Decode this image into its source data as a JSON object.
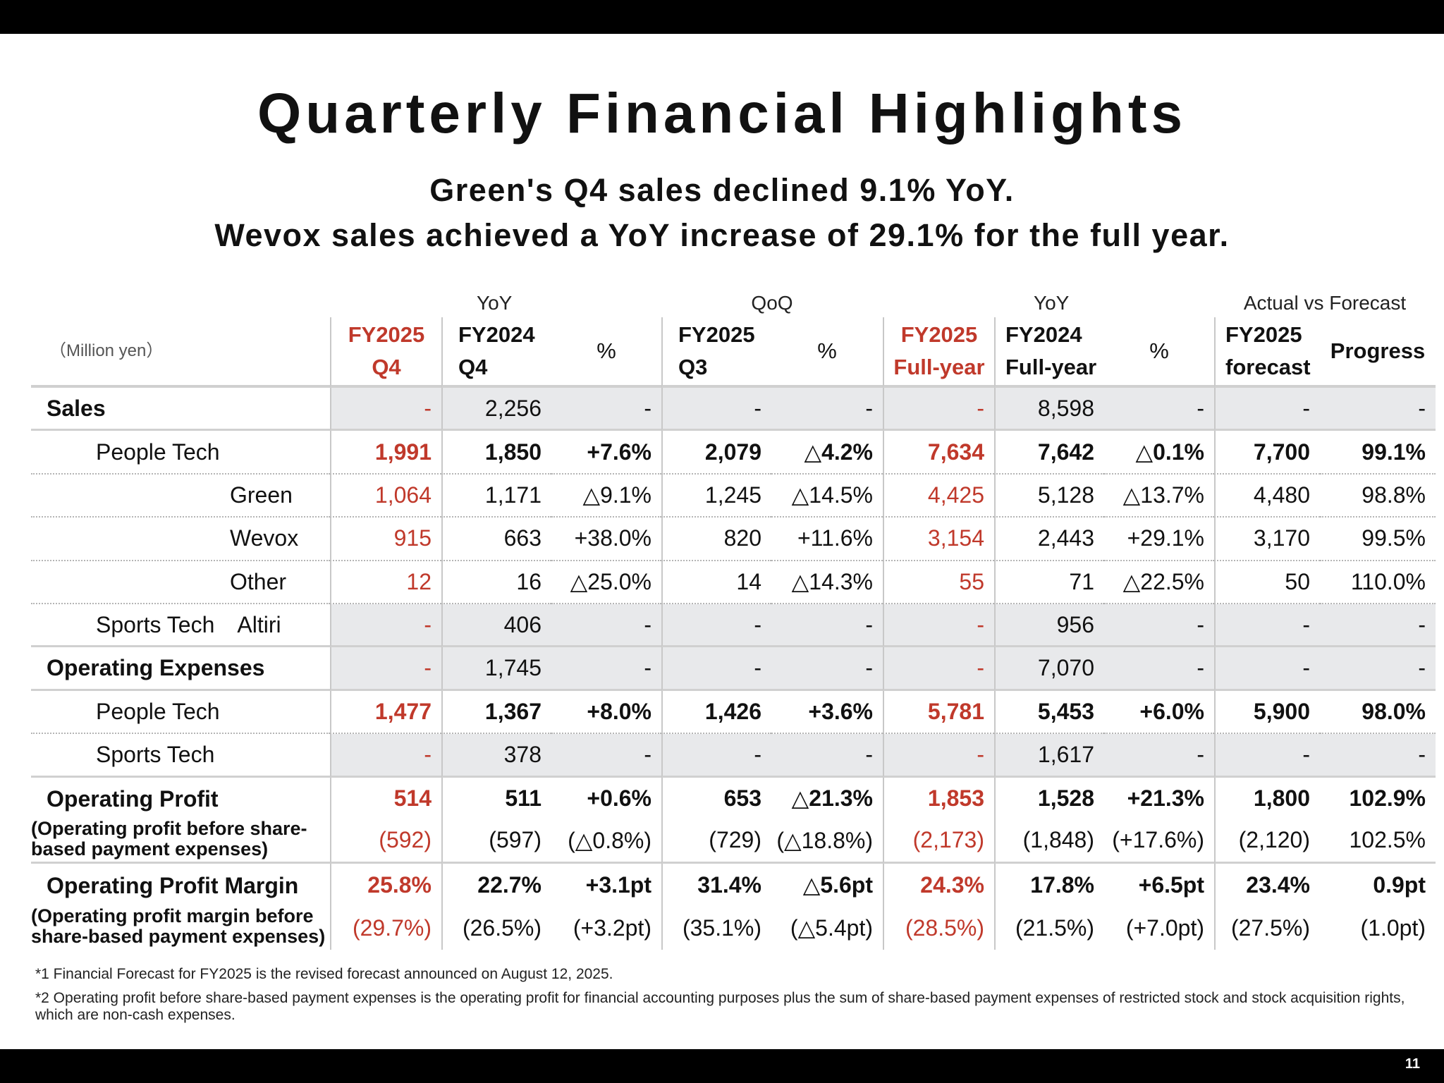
{
  "page": {
    "title": "Quarterly Financial Highlights",
    "subtitle_line1": "Green's Q4 sales declined 9.1% YoY.",
    "subtitle_line2": "Wevox sales achieved a YoY increase of 29.1% for the full year.",
    "page_number": "11"
  },
  "table": {
    "group_headers": {
      "yoy_q4": "YoY",
      "qoq": "QoQ",
      "yoy_full": "YoY",
      "forecast": "Actual vs Forecast"
    },
    "unit_label": "（Million yen）",
    "columns": [
      {
        "l1": "FY2025",
        "l2": "Q4"
      },
      {
        "l1": "FY2024",
        "l2": "Q4"
      },
      {
        "l1": "%",
        "l2": ""
      },
      {
        "l1": "FY2025",
        "l2": "Q3"
      },
      {
        "l1": "%",
        "l2": ""
      },
      {
        "l1": "FY2025",
        "l2": "Full-year"
      },
      {
        "l1": "FY2024",
        "l2": "Full-year"
      },
      {
        "l1": "%",
        "l2": ""
      },
      {
        "l1": "FY2025",
        "l2": "forecast"
      },
      {
        "l1": "Progress",
        "l2": ""
      }
    ],
    "rows": [
      {
        "label": "Sales",
        "values": [
          "-",
          "2,256",
          "-",
          "-",
          "-",
          "-",
          "8,598",
          "-",
          "-",
          "-"
        ]
      },
      {
        "label": "People Tech",
        "values": [
          "1,991",
          "1,850",
          "+7.6%",
          "2,079",
          "△4.2%",
          "7,634",
          "7,642",
          "△0.1%",
          "7,700",
          "99.1%"
        ]
      },
      {
        "label": "Green",
        "values": [
          "1,064",
          "1,171",
          "△9.1%",
          "1,245",
          "△14.5%",
          "4,425",
          "5,128",
          "△13.7%",
          "4,480",
          "98.8%"
        ]
      },
      {
        "label": "Wevox",
        "values": [
          "915",
          "663",
          "+38.0%",
          "820",
          "+11.6%",
          "3,154",
          "2,443",
          "+29.1%",
          "3,170",
          "99.5%"
        ]
      },
      {
        "label": "Other",
        "values": [
          "12",
          "16",
          "△25.0%",
          "14",
          "△14.3%",
          "55",
          "71",
          "△22.5%",
          "50",
          "110.0%"
        ]
      },
      {
        "label": "Sports Tech",
        "sublabel": "Altiri",
        "values": [
          "-",
          "406",
          "-",
          "-",
          "-",
          "-",
          "956",
          "-",
          "-",
          "-"
        ]
      },
      {
        "label": "Operating Expenses",
        "values": [
          "-",
          "1,745",
          "-",
          "-",
          "-",
          "-",
          "7,070",
          "-",
          "-",
          "-"
        ]
      },
      {
        "label": "People Tech",
        "values": [
          "1,477",
          "1,367",
          "+8.0%",
          "1,426",
          "+3.6%",
          "5,781",
          "5,453",
          "+6.0%",
          "5,900",
          "98.0%"
        ]
      },
      {
        "label": "Sports Tech",
        "values": [
          "-",
          "378",
          "-",
          "-",
          "-",
          "-",
          "1,617",
          "-",
          "-",
          "-"
        ]
      },
      {
        "label": "Operating Profit",
        "sublabel": "(Operating profit before share-based payment expenses)",
        "values": [
          "514",
          "511",
          "+0.6%",
          "653",
          "△21.3%",
          "1,853",
          "1,528",
          "+21.3%",
          "1,800",
          "102.9%"
        ],
        "subvalues": [
          "(592)",
          "(597)",
          "(△0.8%)",
          "(729)",
          "(△18.8%)",
          "(2,173)",
          "(1,848)",
          "(+17.6%)",
          "(2,120)",
          "102.5%"
        ]
      },
      {
        "label": "Operating Profit Margin",
        "sublabel": "(Operating profit margin before share-based payment expenses)",
        "values": [
          "25.8%",
          "22.7%",
          "+3.1pt",
          "31.4%",
          "△5.6pt",
          "24.3%",
          "17.8%",
          "+6.5pt",
          "23.4%",
          "0.9pt"
        ],
        "subvalues": [
          "(29.7%)",
          "(26.5%)",
          "(+3.2pt)",
          "(35.1%)",
          "(△5.4pt)",
          "(28.5%)",
          "(21.5%)",
          "(+7.0pt)",
          "(27.5%)",
          "(1.0pt)"
        ]
      }
    ]
  },
  "footnotes": {
    "note1": "*1 Financial Forecast for FY2025 is the revised forecast announced on August 12, 2025.",
    "note2": "*2 Operating profit before share-based payment expenses is the operating profit for financial accounting purposes plus the sum of share-based payment expenses of restricted stock and stock acquisition rights, which are non-cash expenses."
  },
  "colors": {
    "accent_red": "#c0392b",
    "shade_gray": "#e8e9eb",
    "band_black": "#000000"
  }
}
